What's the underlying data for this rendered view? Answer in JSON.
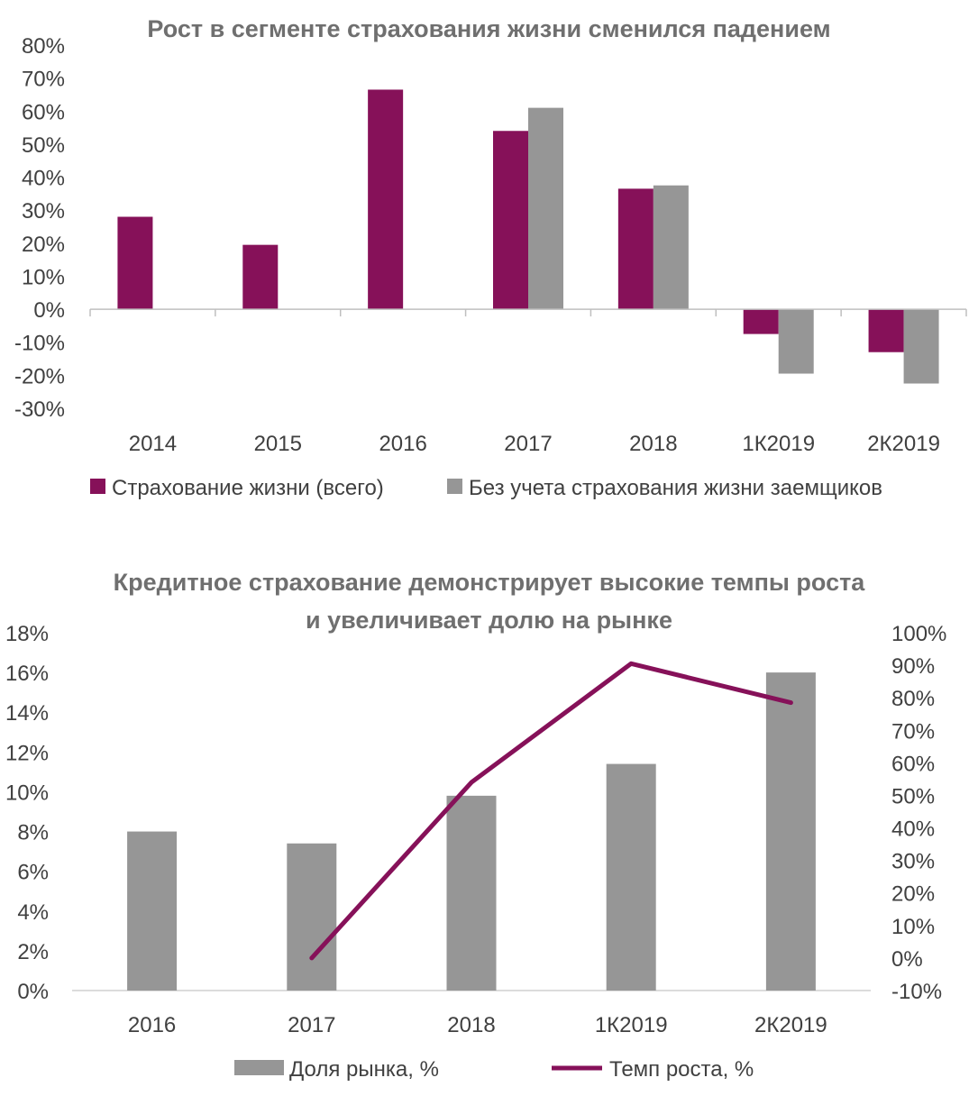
{
  "chart_data": [
    {
      "type": "bar",
      "title": "Рост в сегменте страхования жизни сменился падением",
      "categories": [
        "2014",
        "2015",
        "2016",
        "2017",
        "2018",
        "1К2019",
        "2К2019"
      ],
      "series": [
        {
          "name": "Страхование жизни (всего)",
          "color": "#861159",
          "values": [
            28,
            19.5,
            66.5,
            54,
            36.5,
            -7.5,
            -13
          ]
        },
        {
          "name": "Без учета страхования жизни заемщиков",
          "color": "#969696",
          "values": [
            null,
            null,
            null,
            61,
            37.5,
            -19.5,
            -22.5
          ]
        }
      ],
      "ylim": [
        -30,
        80
      ],
      "yticks": [
        "80%",
        "70%",
        "60%",
        "50%",
        "40%",
        "30%",
        "20%",
        "10%",
        "0%",
        "-10%",
        "-20%",
        "-30%"
      ],
      "legend": "bottom",
      "grid": false
    },
    {
      "type": "bar+line",
      "title_line1": "Кредитное страхование демонстрирует высокие темпы роста",
      "title_line2": "и увеличивает долю на рынке",
      "categories": [
        "2016",
        "2017",
        "2018",
        "1К2019",
        "2К2019"
      ],
      "series": [
        {
          "name": "Доля рынка, %",
          "type": "bar",
          "axis": "left",
          "color": "#969696",
          "values": [
            8.0,
            7.4,
            9.8,
            11.4,
            16.0
          ]
        },
        {
          "name": "Темп роста, %",
          "type": "line",
          "axis": "right",
          "color": "#861159",
          "values": [
            null,
            0,
            54,
            90.5,
            78.5
          ]
        }
      ],
      "ylim_left": [
        0,
        18
      ],
      "ylim_right": [
        -10,
        100
      ],
      "yticks_left": [
        "18%",
        "16%",
        "14%",
        "12%",
        "10%",
        "8%",
        "6%",
        "4%",
        "2%",
        "0%"
      ],
      "yticks_right": [
        "100%",
        "90%",
        "80%",
        "70%",
        "60%",
        "50%",
        "40%",
        "30%",
        "20%",
        "10%",
        "0%",
        "-10%"
      ],
      "legend": "bottom",
      "grid": false
    }
  ]
}
